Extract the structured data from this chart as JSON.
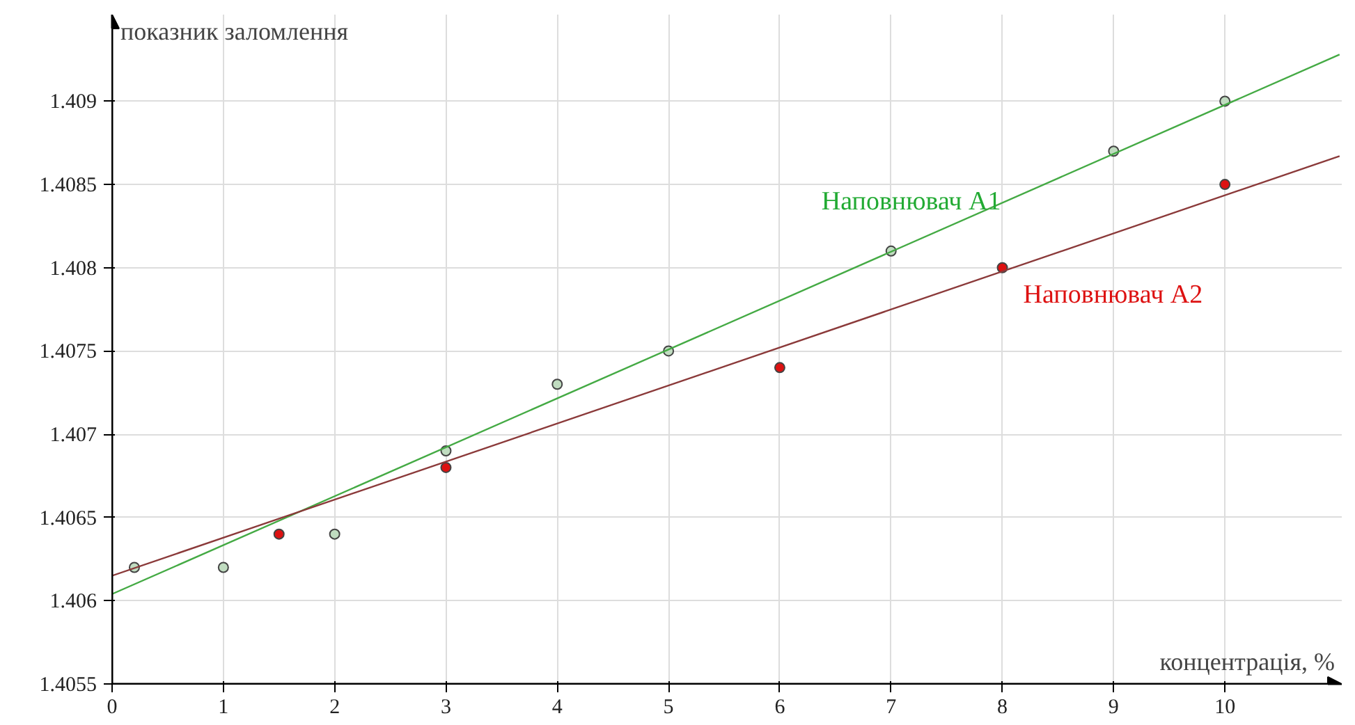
{
  "chart_data": {
    "type": "scatter",
    "xlabel": "концентрація, %",
    "ylabel": "показник заломлення",
    "xlim": [
      0,
      11.05
    ],
    "ylim": [
      1.4055,
      1.40952
    ],
    "xticks": [
      0,
      1,
      2,
      3,
      4,
      5,
      6,
      7,
      8,
      9,
      10
    ],
    "yticks": [
      1.4055,
      1.406,
      1.4065,
      1.407,
      1.4075,
      1.408,
      1.4085,
      1.409
    ],
    "grid": true,
    "marker": "circle",
    "series": [
      {
        "name": "Наповнювач А1",
        "color": "#c0dcc0",
        "x": [
          0.2,
          1,
          2,
          3,
          4,
          5,
          7,
          9,
          10
        ],
        "values": [
          1.4062,
          1.4062,
          1.4064,
          1.4069,
          1.4073,
          1.4075,
          1.4081,
          1.4087,
          1.409
        ]
      },
      {
        "name": "Наповнювач А2",
        "color": "#dd1111",
        "x": [
          1.5,
          3,
          6,
          8,
          10
        ],
        "values": [
          1.4064,
          1.4068,
          1.4074,
          1.408,
          1.4085
        ]
      },
      {
        "type": "line",
        "marker": "none",
        "color": "#44aa44",
        "x": [
          0,
          11.03
        ],
        "values": [
          1.40604,
          1.40928
        ]
      },
      {
        "type": "line",
        "marker": "none",
        "color": "#8b3a3a",
        "x": [
          0,
          11.03
        ],
        "values": [
          1.40615,
          1.40867
        ]
      }
    ]
  }
}
